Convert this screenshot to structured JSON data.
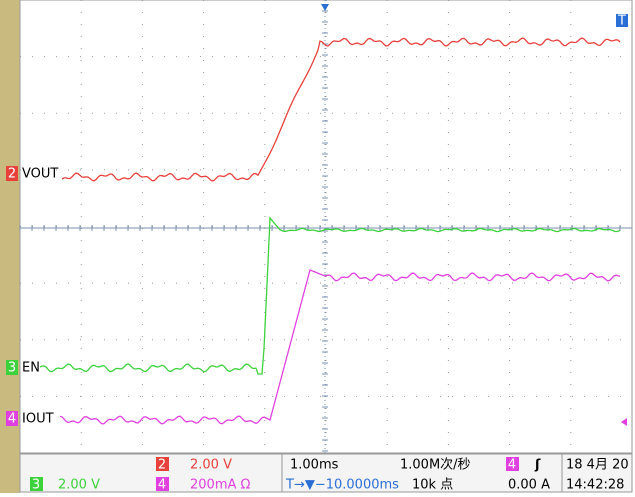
{
  "screen": {
    "trace_labels": [
      "VOUT",
      "EN",
      "IOUT"
    ],
    "channel_markers": [
      "2",
      "3",
      "4"
    ],
    "trigger_marker": "T"
  },
  "status_bar": {
    "ch2_badge": "2",
    "ch2_scale": "2.00 V",
    "ch3_badge": "3",
    "ch3_scale": "2.00 V",
    "ch4_badge": "4",
    "ch4_scale": "200mA Ω",
    "timebase": "1.00ms",
    "sample_rate": "1.00M次/秒",
    "position": "T→▼−10.0000ms",
    "record_length": "10k 点",
    "trigger_badge": "4",
    "trigger_slope": "ʃ",
    "trigger_level": "0.00 A",
    "date": "18 4月 20",
    "time": "14:42:28"
  }
}
